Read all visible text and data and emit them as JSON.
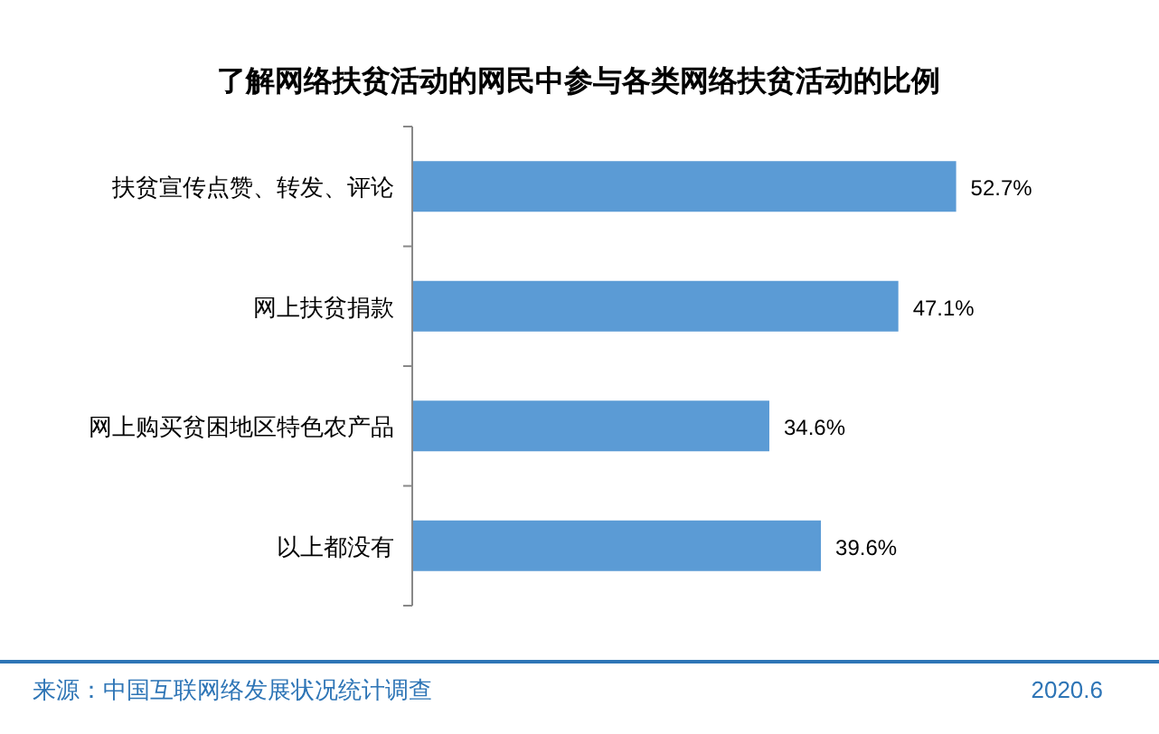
{
  "chart_data": {
    "type": "bar",
    "orientation": "horizontal",
    "title": "了解网络扶贫活动的网民中参与各类网络扶贫活动的比例",
    "categories": [
      "扶贫宣传点赞、转发、评论",
      "网上扶贫捐款",
      "网上购买贫困地区特色农产品",
      "以上都没有"
    ],
    "values": [
      52.7,
      47.1,
      34.6,
      39.6
    ],
    "color": "#5b9bd5",
    "value_labels": [
      "52.7%",
      "47.1%",
      "34.6%",
      "39.6%"
    ],
    "annotations": [
      "来源：中国互联网络发展状况统计调查",
      "2020.6"
    ]
  }
}
